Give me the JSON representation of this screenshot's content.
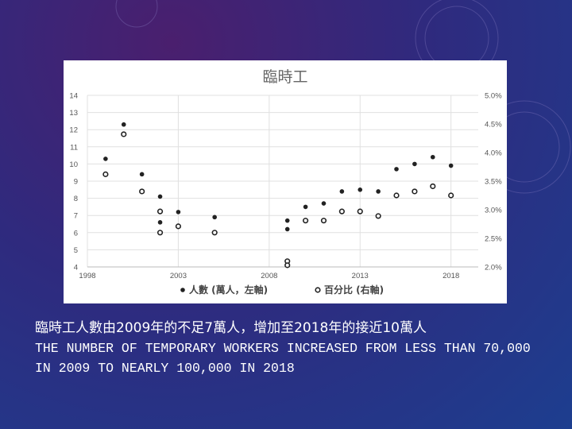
{
  "slide": {
    "caption_zh": "臨時工人數由2009年的不足7萬人，增加至2018年的接近10萬人",
    "caption_en": "THE NUMBER OF TEMPORARY WORKERS INCREASED FROM LESS THAN 70,000 IN 2009 TO NEARLY 100,000 IN 2018"
  },
  "colors": {
    "background": "#2f2a7e",
    "card": "#ffffff",
    "series": "#222222",
    "grid": "#e0e0e0"
  },
  "chart_data": {
    "type": "scatter",
    "title": "臨時工",
    "xlabel": "",
    "ylabel": "",
    "xlim": [
      1998,
      2019.5
    ],
    "ylim": [
      4,
      14
    ],
    "y2lim": [
      2.0,
      5.0
    ],
    "x_ticks": [
      "1998",
      "2003",
      "2008",
      "2013",
      "2018"
    ],
    "y_ticks": [
      "4",
      "5",
      "6",
      "7",
      "8",
      "9",
      "10",
      "11",
      "12",
      "13",
      "14"
    ],
    "y2_ticks": [
      "2.0%",
      "2.5%",
      "3.0%",
      "3.5%",
      "4.0%",
      "4.5%",
      "5.0%"
    ],
    "grid": true,
    "legend_position": "bottom",
    "series": [
      {
        "name": "人數 (萬人，左軸)",
        "axis": "left",
        "marker": "filled",
        "points": [
          [
            1999,
            10.3
          ],
          [
            2000,
            12.3
          ],
          [
            2001,
            9.4
          ],
          [
            2002,
            8.1
          ],
          [
            2002,
            6.6
          ],
          [
            2003,
            7.2
          ],
          [
            2005,
            6.9
          ],
          [
            2009,
            6.7
          ],
          [
            2009,
            6.2
          ],
          [
            2010,
            7.5
          ],
          [
            2011,
            7.7
          ],
          [
            2012,
            8.4
          ],
          [
            2013,
            8.5
          ],
          [
            2014,
            8.4
          ],
          [
            2015,
            9.7
          ],
          [
            2016,
            10.0
          ],
          [
            2017,
            10.4
          ],
          [
            2018,
            9.9
          ]
        ]
      },
      {
        "name": "百分比 (右軸)",
        "axis": "right",
        "marker": "hollow",
        "points": [
          [
            1999,
            3.62
          ],
          [
            2000,
            4.32
          ],
          [
            2001,
            3.32
          ],
          [
            2002,
            2.97
          ],
          [
            2002,
            2.6
          ],
          [
            2003,
            2.71
          ],
          [
            2005,
            2.6
          ],
          [
            2009,
            2.1
          ],
          [
            2009,
            2.03
          ],
          [
            2010,
            2.81
          ],
          [
            2011,
            2.81
          ],
          [
            2012,
            2.97
          ],
          [
            2013,
            2.97
          ],
          [
            2014,
            2.89
          ],
          [
            2015,
            3.25
          ],
          [
            2016,
            3.32
          ],
          [
            2017,
            3.41
          ],
          [
            2018,
            3.25
          ]
        ]
      }
    ]
  }
}
